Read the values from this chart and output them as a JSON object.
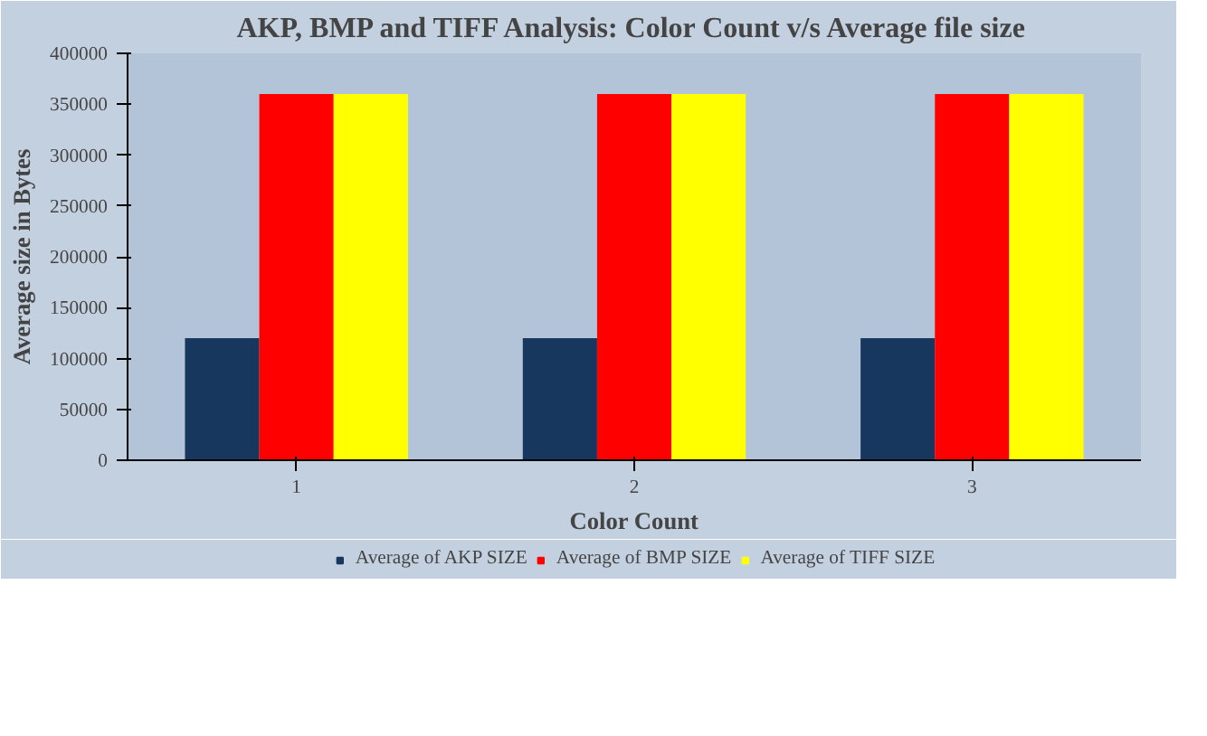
{
  "chart_data": {
    "type": "bar",
    "title": "AKP, BMP and TIFF Analysis: Color Count v/s Average file size",
    "xlabel": "Color Count",
    "ylabel": "Average size in Bytes",
    "categories": [
      "1",
      "2",
      "3"
    ],
    "series": [
      {
        "name": "Average of AKP SIZE",
        "color": "#17375e",
        "values": [
          120000,
          120000,
          120000
        ]
      },
      {
        "name": "Average of BMP SIZE",
        "color": "#ff0000",
        "values": [
          360000,
          360000,
          360000
        ]
      },
      {
        "name": "Average of TIFF SIZE",
        "color": "#ffff00",
        "values": [
          360000,
          360000,
          360000
        ]
      }
    ],
    "ylim": [
      0,
      400000
    ],
    "yticks": [
      0,
      50000,
      100000,
      150000,
      200000,
      250000,
      300000,
      350000,
      400000
    ],
    "grid": false,
    "legend": "bottom"
  }
}
